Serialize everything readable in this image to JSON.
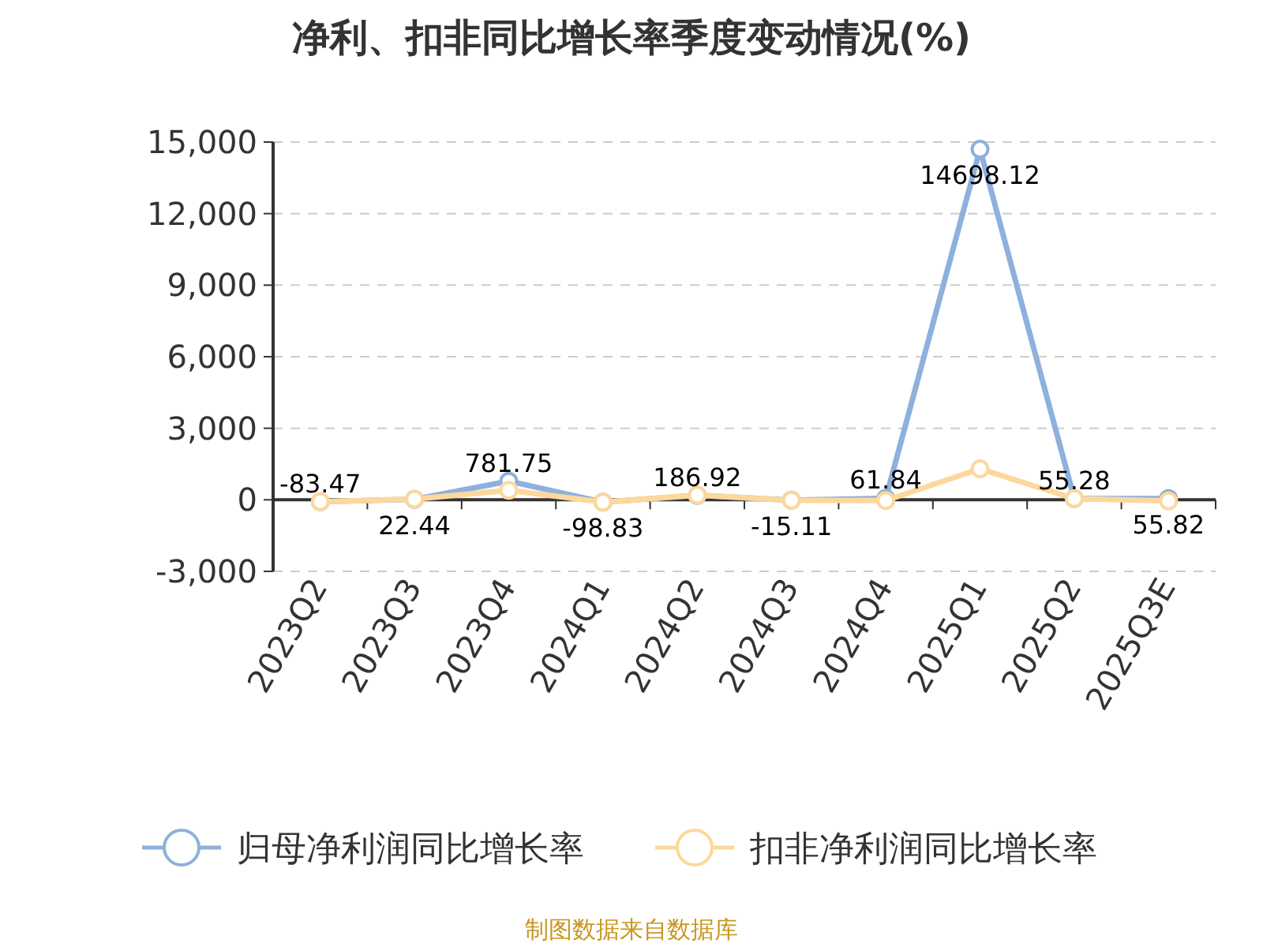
{
  "chart_data": {
    "type": "line",
    "title": "净利、扣非同比增长率季度变动情况(%)",
    "categories": [
      "2023Q2",
      "2023Q3",
      "2023Q4",
      "2024Q1",
      "2024Q2",
      "2024Q3",
      "2024Q4",
      "2025Q1",
      "2025Q2",
      "2025Q3E"
    ],
    "series": [
      {
        "name": "归母净利润同比增长率",
        "color": "#8eb0dc",
        "values": [
          -83.47,
          22.44,
          781.75,
          -98.83,
          186.92,
          -15.11,
          61.84,
          14698.12,
          55.28,
          55.82
        ],
        "data_labels": true
      },
      {
        "name": "扣非净利润同比增长率",
        "color": "#fdd89c",
        "values": [
          -80,
          30,
          400,
          -100,
          200,
          -20,
          -30,
          1300,
          50,
          -50
        ]
      }
    ],
    "ylim": [
      -3000,
      15000
    ],
    "yticks": [
      {
        "value": -3000,
        "label": "-3,000"
      },
      0,
      {
        "value": 3000,
        "label": "3,000"
      },
      {
        "value": 6000,
        "label": "6,000"
      },
      {
        "value": 9000,
        "label": "9,000"
      },
      {
        "value": 12000,
        "label": "12,000"
      },
      {
        "value": 15000,
        "label": "15,000"
      }
    ],
    "grid": "y",
    "legend": "bottom",
    "marker": "circle",
    "line_style": "solid",
    "annotations": [
      "制图数据来自数据库"
    ]
  }
}
